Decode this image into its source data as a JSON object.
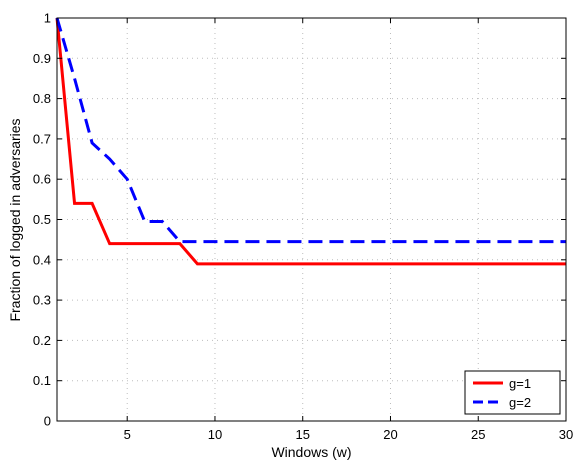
{
  "chart_data": {
    "type": "line",
    "title": "",
    "xlabel": "Windows (w)",
    "ylabel": "Fraction of logged in adversaries",
    "xlim": [
      1,
      30
    ],
    "ylim": [
      0,
      1
    ],
    "xticks": [
      5,
      10,
      15,
      20,
      25,
      30
    ],
    "xtick_labels": [
      "5",
      "10",
      "15",
      "20",
      "25",
      "30"
    ],
    "yticks": [
      0,
      0.1,
      0.2,
      0.3,
      0.4,
      0.5,
      0.6,
      0.7,
      0.8,
      0.9,
      1
    ],
    "ytick_labels": [
      "0",
      "0.1",
      "0.2",
      "0.3",
      "0.4",
      "0.5",
      "0.6",
      "0.7",
      "0.8",
      "0.9",
      "1"
    ],
    "grid": true,
    "legend_position": "bottom-right",
    "series": [
      {
        "name": "g=1",
        "color": "#ff0000",
        "style": "solid",
        "x": [
          1,
          2,
          3,
          4,
          5,
          6,
          7,
          8,
          9,
          10,
          11,
          12,
          13,
          14,
          15,
          16,
          17,
          18,
          19,
          20,
          21,
          22,
          23,
          24,
          25,
          26,
          27,
          28,
          29,
          30
        ],
        "values": [
          1.0,
          0.54,
          0.54,
          0.44,
          0.44,
          0.44,
          0.44,
          0.44,
          0.39,
          0.39,
          0.39,
          0.39,
          0.39,
          0.39,
          0.39,
          0.39,
          0.39,
          0.39,
          0.39,
          0.39,
          0.39,
          0.39,
          0.39,
          0.39,
          0.39,
          0.39,
          0.39,
          0.39,
          0.39,
          0.39
        ]
      },
      {
        "name": "g=2",
        "color": "#0000ff",
        "style": "dashed",
        "x": [
          1,
          2,
          3,
          4,
          5,
          6,
          7,
          8,
          9,
          10,
          11,
          12,
          13,
          14,
          15,
          16,
          17,
          18,
          19,
          20,
          21,
          22,
          23,
          24,
          25,
          26,
          27,
          28,
          29,
          30
        ],
        "values": [
          1.0,
          0.85,
          0.69,
          0.65,
          0.6,
          0.495,
          0.495,
          0.445,
          0.445,
          0.445,
          0.445,
          0.445,
          0.445,
          0.445,
          0.445,
          0.445,
          0.445,
          0.445,
          0.445,
          0.445,
          0.445,
          0.445,
          0.445,
          0.445,
          0.445,
          0.445,
          0.445,
          0.445,
          0.445,
          0.445
        ]
      }
    ]
  }
}
